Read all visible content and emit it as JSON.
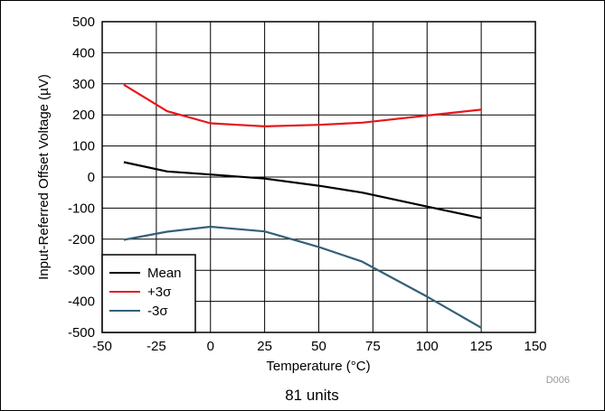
{
  "chart_data": {
    "type": "line",
    "title": "",
    "xlabel": "Temperature (°C)",
    "ylabel": "Input-Referred Offset Voltage (µV)",
    "xlim": [
      -50,
      150
    ],
    "ylim": [
      -500,
      500
    ],
    "x_ticks": [
      "-50",
      "-25",
      "0",
      "25",
      "50",
      "75",
      "100",
      "125",
      "150"
    ],
    "y_ticks": [
      "500",
      "400",
      "300",
      "200",
      "100",
      "0",
      "-100",
      "-200",
      "-300",
      "-400",
      "-500"
    ],
    "grid": true,
    "legend_position": "bottom-left",
    "series": [
      {
        "name": "Mean",
        "color": "#000000",
        "x": [
          -40,
          -20,
          0,
          25,
          50,
          70,
          100,
          125
        ],
        "y": [
          48,
          18,
          8,
          -5,
          -28,
          -50,
          -95,
          -132
        ]
      },
      {
        "name": "+3σ",
        "color": "#e8161b",
        "x": [
          -40,
          -20,
          0,
          25,
          50,
          70,
          100,
          125
        ],
        "y": [
          297,
          212,
          173,
          163,
          168,
          175,
          198,
          217
        ]
      },
      {
        "name": "-3σ",
        "color": "#346078",
        "x": [
          -40,
          -20,
          0,
          25,
          50,
          70,
          100,
          125
        ],
        "y": [
          -202,
          -176,
          -160,
          -175,
          -225,
          -272,
          -385,
          -485
        ]
      }
    ],
    "code": "D006",
    "caption": "81 units"
  }
}
